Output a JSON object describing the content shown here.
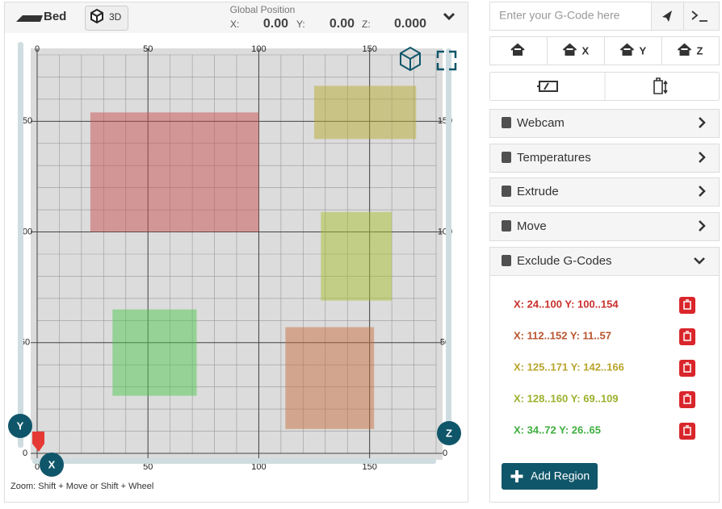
{
  "header": {
    "title": "Bed",
    "view_button": "3D",
    "position_label": "Global Position",
    "x_label": "X:",
    "x_value": "0.00",
    "y_label": "Y:",
    "y_value": "0.00",
    "z_label": "Z:",
    "z_value": "0.000"
  },
  "bed": {
    "xlim": [
      0,
      180
    ],
    "ylim": [
      0,
      180
    ],
    "xticks": [
      0,
      50,
      100,
      150
    ],
    "yticks": [
      0,
      50,
      100,
      150
    ],
    "y_button": "Y",
    "x_button": "X",
    "z_button": "Z",
    "hint": "Zoom: Shift + Move or Shift + Wheel"
  },
  "gcode": {
    "placeholder": "Enter your G-Code here"
  },
  "home_buttons": [
    "X",
    "Y",
    "Z"
  ],
  "panels": [
    "Webcam",
    "Temperatures",
    "Extrude",
    "Move",
    "Exclude G-Codes"
  ],
  "regions": [
    {
      "label": "X: 24..100 Y: 100..154",
      "color": "#c9302c",
      "fill": "#c85050"
    },
    {
      "label": "X: 112..152 Y: 11..57",
      "color": "#b9552e",
      "fill": "#c87040"
    },
    {
      "label": "X: 125..171 Y: 142..166",
      "color": "#b8a52c",
      "fill": "#b8aa30"
    },
    {
      "label": "X: 128..160 Y: 69..109",
      "color": "#9cb02c",
      "fill": "#a8c030"
    },
    {
      "label": "X: 34..72 Y: 26..65",
      "color": "#3eae3e",
      "fill": "#50c850"
    }
  ],
  "add_region": "Add Region"
}
